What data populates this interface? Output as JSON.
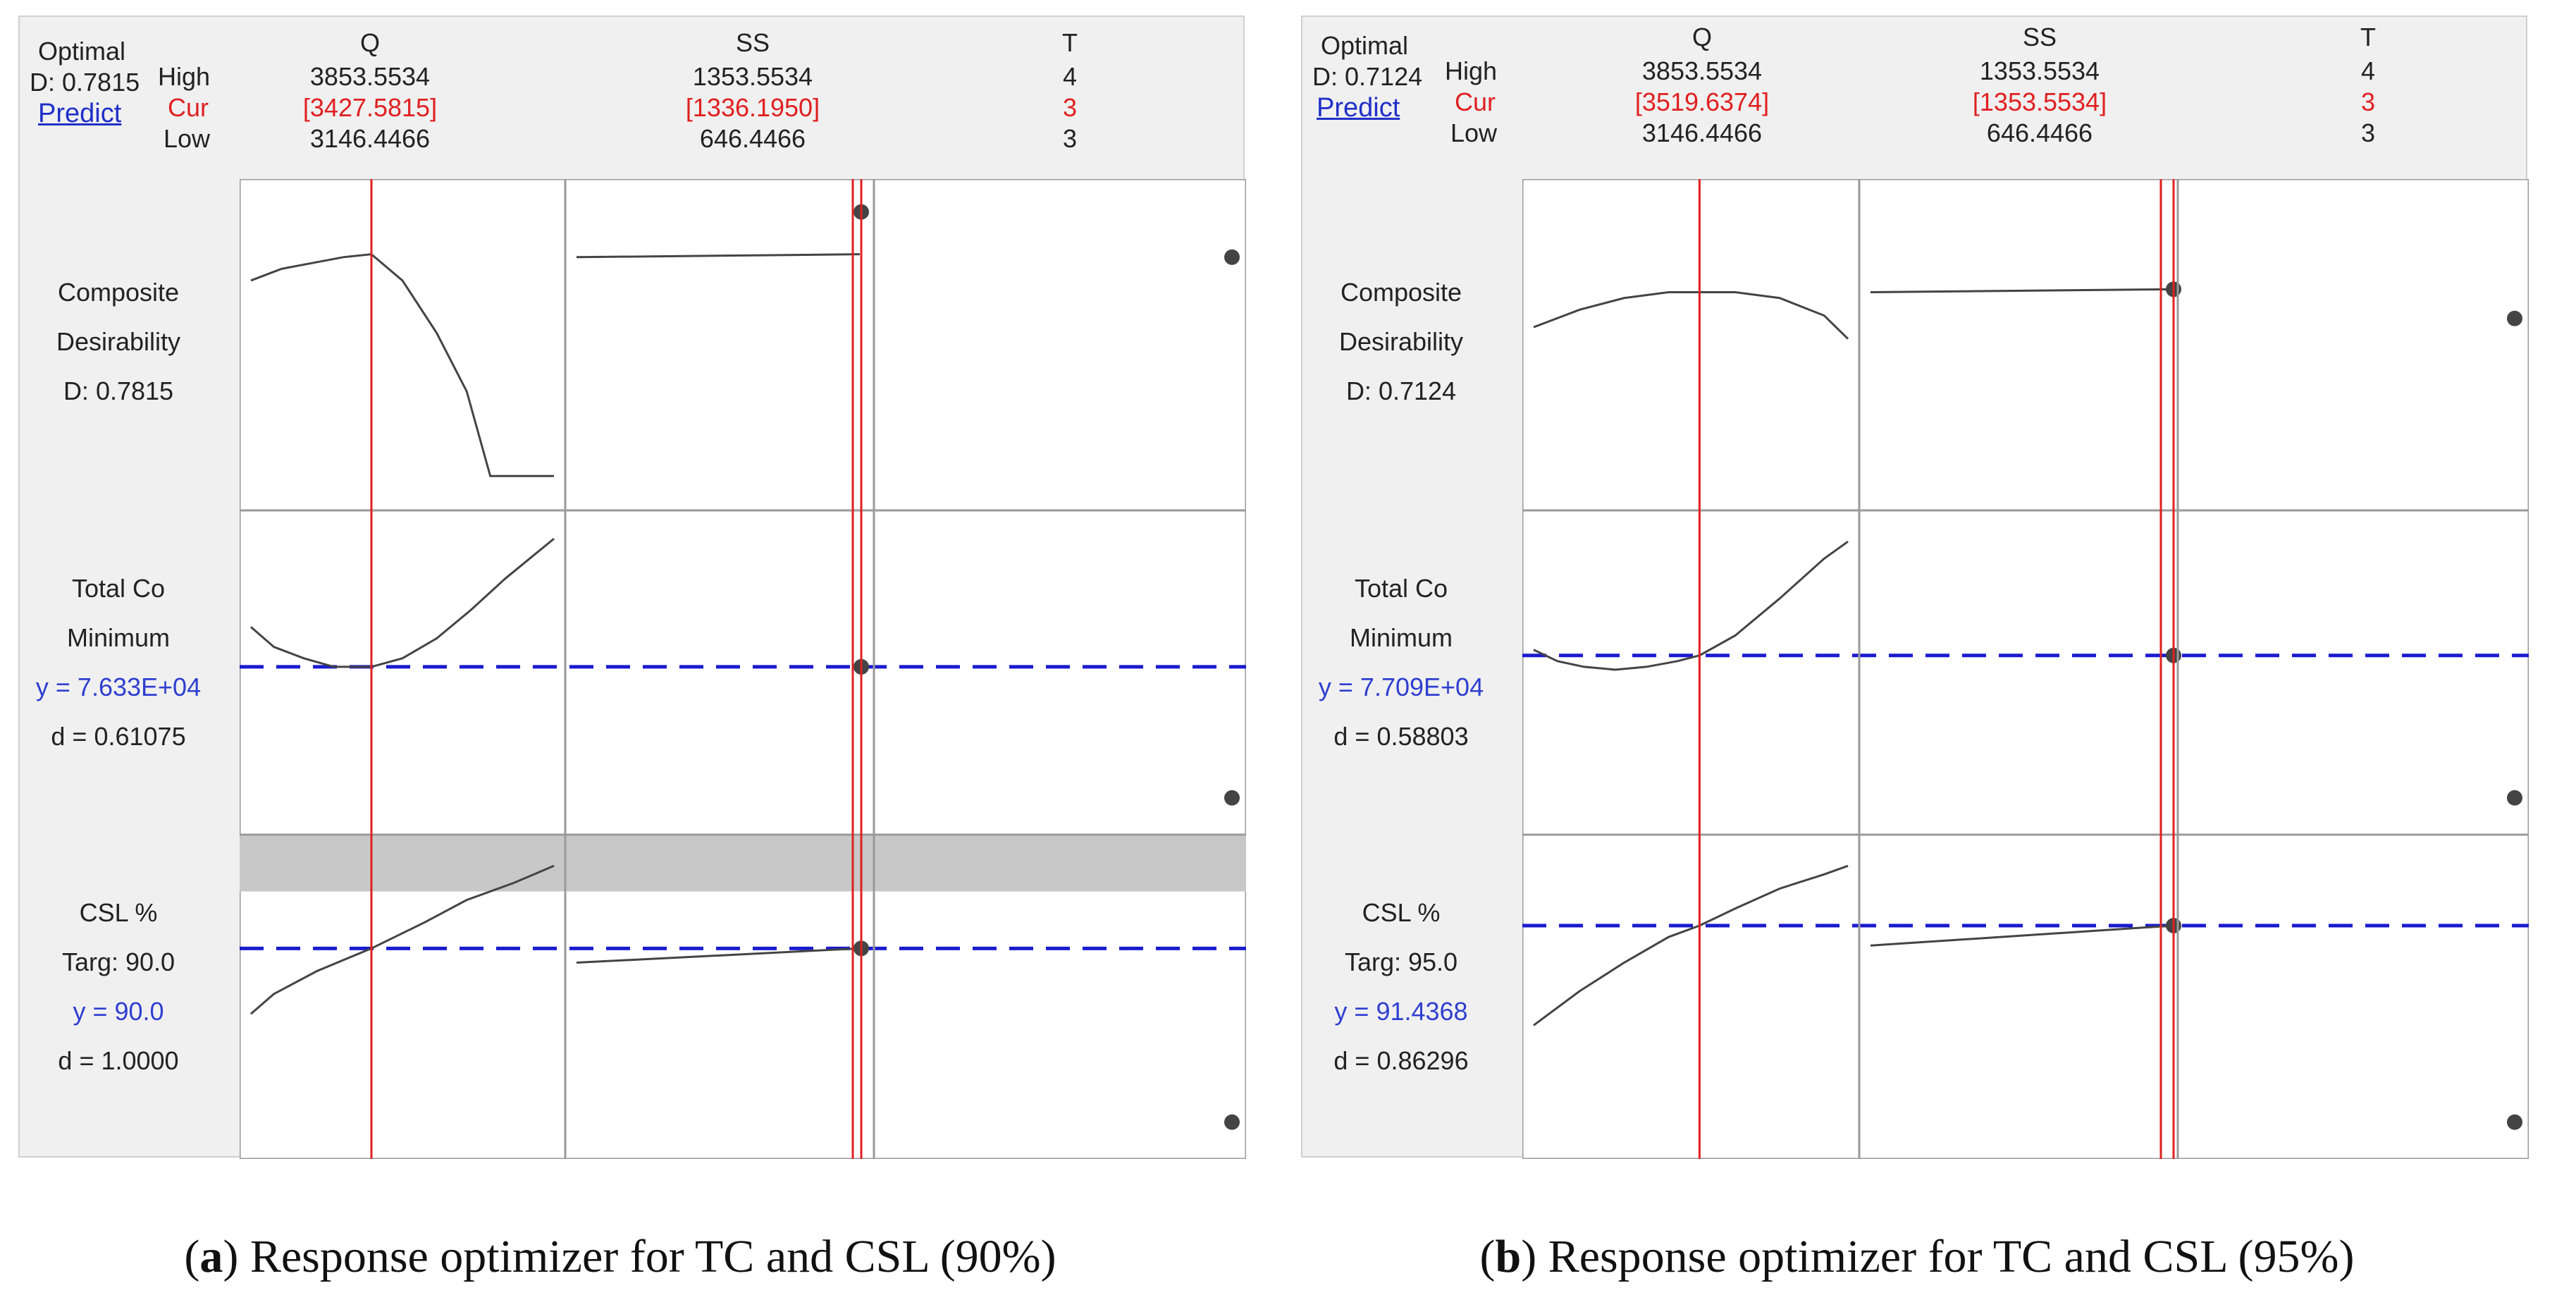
{
  "chart_data": [
    {
      "type": "line",
      "panel_id": "a",
      "caption_letter": "a",
      "caption_text": "Response optimizer for TC and CSL (90%)",
      "header": {
        "optimal_label": "Optimal",
        "d_text": "D: 0.7815",
        "predict_label": "Predict",
        "high_label": "High",
        "cur_label": "Cur",
        "low_label": "Low"
      },
      "factors": [
        {
          "name": "Q",
          "high": "3853.5534",
          "cur": "[3427.5815]",
          "low": "3146.4466",
          "min": 3146.4466,
          "max": 3853.5534,
          "cur_value": 3427.5815
        },
        {
          "name": "SS",
          "high": "1353.5534",
          "cur": "[1336.1950]",
          "low": "646.4466",
          "min": 646.4466,
          "max": 1353.5534,
          "cur_value": 1336.195
        },
        {
          "name": "T",
          "high": "4",
          "cur": "3",
          "low": "3",
          "min": 3,
          "max": 4,
          "cur_value": 3
        }
      ],
      "rows": [
        {
          "label1": "Composite",
          "label2": "Desirability",
          "label3": "D: 0.7815",
          "label4": "",
          "ylim": [
            0,
            1
          ],
          "target_line": null,
          "shaded_band": null,
          "q_curve": {
            "x": [
              3146.4,
              3218,
              3290,
              3362,
              3427.6,
              3500,
              3580,
              3650,
              3705,
              3853.6
            ],
            "y": [
              0.72,
              0.76,
              0.78,
              0.8,
              0.81,
              0.72,
              0.54,
              0.34,
              0.05,
              0.05
            ]
          },
          "ss_curve": {
            "x": [
              646.4,
              1336.2
            ],
            "y": [
              0.8,
              0.81
            ]
          },
          "ss_point": 0.955,
          "t_points": [
            0.81,
            0.8
          ]
        },
        {
          "label1": "Total Co",
          "label2": "Minimum",
          "label3": "y = 7.633E+04",
          "label4": "d = 0.61075",
          "ylim": [
            0,
            1
          ],
          "target_line": 0.52,
          "shaded_band": null,
          "q_curve": {
            "x": [
              3146.4,
              3200,
              3270,
              3340,
              3427.6,
              3500,
              3580,
              3660,
              3740,
              3853.6
            ],
            "y": [
              0.66,
              0.59,
              0.55,
              0.52,
              0.52,
              0.55,
              0.62,
              0.72,
              0.83,
              0.97
            ]
          },
          "ss_curve": null,
          "ss_point": 0.52,
          "t_points": [
            0.52,
            0.06
          ]
        },
        {
          "label1": "CSL %",
          "label2": "Targ: 90.0",
          "label3": "y = 90.0",
          "label4": "d = 1.0000",
          "ylim": [
            0,
            1
          ],
          "target_line": 0.67,
          "shaded_band": [
            0.87,
            1.0
          ],
          "q_curve": {
            "x": [
              3146.4,
              3200,
              3300,
              3427.6,
              3550,
              3650,
              3760,
              3853.6
            ],
            "y": [
              0.44,
              0.51,
              0.59,
              0.67,
              0.76,
              0.84,
              0.9,
              0.96
            ]
          },
          "ss_curve": {
            "x": [
              646.4,
              1336.2
            ],
            "y": [
              0.62,
              0.67
            ]
          },
          "ss_point": 0.67,
          "t_points": [
            0.67,
            0.06
          ]
        }
      ]
    },
    {
      "type": "line",
      "panel_id": "b",
      "caption_letter": "b",
      "caption_text": "Response optimizer for TC and CSL (95%)",
      "header": {
        "optimal_label": "Optimal",
        "d_text": "D: 0.7124",
        "predict_label": "Predict",
        "high_label": "High",
        "cur_label": "Cur",
        "low_label": "Low"
      },
      "factors": [
        {
          "name": "Q",
          "high": "3853.5534",
          "cur": "[3519.6374]",
          "low": "3146.4466",
          "min": 3146.4466,
          "max": 3853.5534,
          "cur_value": 3519.6374
        },
        {
          "name": "SS",
          "high": "1353.5534",
          "cur": "[1353.5534]",
          "low": "646.4466",
          "min": 646.4466,
          "max": 1353.5534,
          "cur_value": 1353.5534
        },
        {
          "name": "T",
          "high": "4",
          "cur": "3",
          "low": "3",
          "min": 3,
          "max": 4,
          "cur_value": 3
        }
      ],
      "rows": [
        {
          "label1": "Composite",
          "label2": "Desirability",
          "label3": "D: 0.7124",
          "label4": "",
          "ylim": [
            0,
            1
          ],
          "target_line": null,
          "shaded_band": null,
          "q_curve": {
            "x": [
              3146.4,
              3250,
              3350,
              3450,
              3519.6,
              3600,
              3700,
              3800,
              3853.6
            ],
            "y": [
              0.56,
              0.62,
              0.66,
              0.68,
              0.68,
              0.68,
              0.66,
              0.6,
              0.52
            ]
          },
          "ss_curve": {
            "x": [
              646.4,
              1353.6
            ],
            "y": [
              0.68,
              0.69
            ]
          },
          "ss_point": 0.69,
          "t_points": [
            0.59,
            0.59
          ]
        },
        {
          "label1": "Total Co",
          "label2": "Minimum",
          "label3": "y = 7.709E+04",
          "label4": "d = 0.58803",
          "ylim": [
            0,
            1
          ],
          "target_line": 0.56,
          "shaded_band": null,
          "q_curve": {
            "x": [
              3146.4,
              3200,
              3260,
              3330,
              3400,
              3470,
              3519.6,
              3600,
              3700,
              3800,
              3853.6
            ],
            "y": [
              0.58,
              0.54,
              0.52,
              0.51,
              0.52,
              0.54,
              0.56,
              0.63,
              0.76,
              0.9,
              0.96
            ]
          },
          "ss_curve": null,
          "ss_point": 0.56,
          "t_points": [
            0.56,
            0.06
          ]
        },
        {
          "label1": "CSL %",
          "label2": "Targ: 95.0",
          "label3": "y = 91.4368",
          "label4": "d = 0.86296",
          "ylim": [
            0,
            1
          ],
          "target_line": 0.75,
          "shaded_band": null,
          "q_curve": {
            "x": [
              3146.4,
              3250,
              3350,
              3450,
              3519.6,
              3600,
              3700,
              3800,
              3853.6
            ],
            "y": [
              0.4,
              0.52,
              0.62,
              0.71,
              0.75,
              0.81,
              0.88,
              0.93,
              0.96
            ]
          },
          "ss_curve": {
            "x": [
              646.4,
              1353.6
            ],
            "y": [
              0.68,
              0.75
            ]
          },
          "ss_point": 0.75,
          "t_points": [
            0.75,
            0.06
          ]
        }
      ]
    }
  ]
}
